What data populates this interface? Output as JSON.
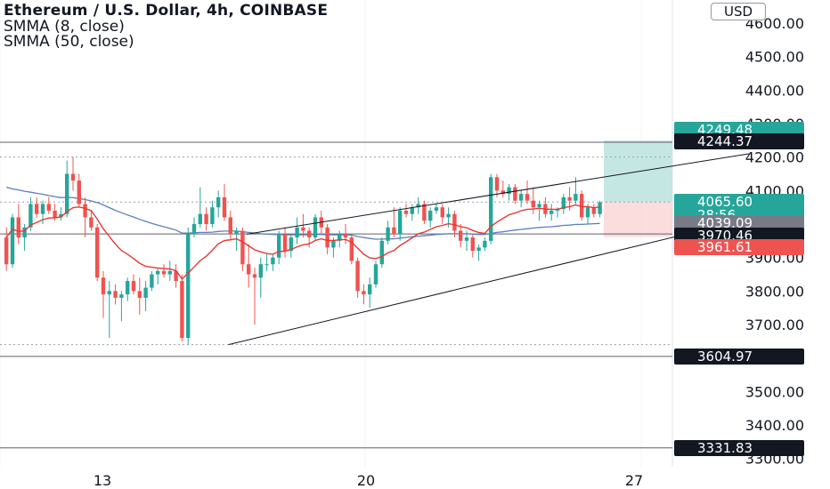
{
  "header": {
    "title": "Ethereum / U.S. Dollar, 4h, COINBASE",
    "indicator_1": "SMMA (8, close)",
    "indicator_2": "SMMA (50, close)",
    "currency_button": "USD"
  },
  "colors": {
    "up": "#26a69a",
    "down": "#ef5350",
    "smma8": "#e53935",
    "smma50": "#5b7fbf",
    "target_zone": "#b2dfdb",
    "stop_zone": "#fbd2d2"
  },
  "chart_data": {
    "type": "candlestick",
    "title": "Ethereum / U.S. Dollar, 4h, COINBASE",
    "ylim": [
      3260,
      4640
    ],
    "y_ticks": [
      "4600.00",
      "4500.00",
      "4400.00",
      "4300.00",
      "4200.00",
      "4100.00",
      "4000.00",
      "3900.00",
      "3800.00",
      "3700.00",
      "3600.00",
      "3500.00",
      "3400.00",
      "3300.00"
    ],
    "x_ticks": [
      "13",
      "20",
      "27"
    ],
    "candles": [
      [
        3960,
        3990,
        3860,
        3880
      ],
      [
        3880,
        4030,
        3870,
        4020
      ],
      [
        4020,
        4060,
        3940,
        3960
      ],
      [
        3960,
        4000,
        3920,
        3990
      ],
      [
        3990,
        4080,
        3980,
        4060
      ],
      [
        4060,
        4080,
        4020,
        4030
      ],
      [
        4030,
        4070,
        4000,
        4060
      ],
      [
        4060,
        4080,
        4030,
        4040
      ],
      [
        4040,
        4060,
        4010,
        4020
      ],
      [
        4020,
        4050,
        4010,
        4030
      ],
      [
        4030,
        4190,
        4020,
        4150
      ],
      [
        4150,
        4200,
        4100,
        4130
      ],
      [
        4130,
        4150,
        4050,
        4060
      ],
      [
        4060,
        4080,
        3960,
        4020
      ],
      [
        4020,
        4040,
        3980,
        3990
      ],
      [
        3990,
        4000,
        3830,
        3840
      ],
      [
        3840,
        3860,
        3720,
        3790
      ],
      [
        3790,
        3830,
        3660,
        3800
      ],
      [
        3800,
        3820,
        3760,
        3780
      ],
      [
        3780,
        3800,
        3710,
        3790
      ],
      [
        3790,
        3840,
        3770,
        3830
      ],
      [
        3830,
        3850,
        3790,
        3800
      ],
      [
        3800,
        3840,
        3730,
        3780
      ],
      [
        3780,
        3830,
        3740,
        3810
      ],
      [
        3810,
        3860,
        3800,
        3850
      ],
      [
        3850,
        3870,
        3820,
        3860
      ],
      [
        3860,
        3880,
        3840,
        3850
      ],
      [
        3850,
        3890,
        3830,
        3860
      ],
      [
        3860,
        3880,
        3810,
        3830
      ],
      [
        3830,
        3850,
        3650,
        3660
      ],
      [
        3660,
        3990,
        3640,
        3970
      ],
      [
        3970,
        4020,
        3960,
        4000
      ],
      [
        4000,
        4110,
        3990,
        4030
      ],
      [
        4030,
        4050,
        3980,
        4000
      ],
      [
        4000,
        4070,
        3990,
        4050
      ],
      [
        4050,
        4100,
        4020,
        4080
      ],
      [
        4080,
        4120,
        4010,
        4020
      ],
      [
        4020,
        4040,
        3950,
        3970
      ],
      [
        3970,
        3990,
        3920,
        3980
      ],
      [
        3980,
        3990,
        3860,
        3880
      ],
      [
        3880,
        3940,
        3810,
        3850
      ],
      [
        3850,
        3870,
        3700,
        3840
      ],
      [
        3840,
        3900,
        3780,
        3880
      ],
      [
        3880,
        3910,
        3860,
        3880
      ],
      [
        3880,
        3910,
        3860,
        3900
      ],
      [
        3900,
        3980,
        3880,
        3970
      ],
      [
        3970,
        3990,
        3900,
        3920
      ],
      [
        3920,
        3970,
        3900,
        3960
      ],
      [
        3960,
        4020,
        3940,
        3990
      ],
      [
        3990,
        4030,
        3960,
        3980
      ],
      [
        3980,
        3990,
        3930,
        3960
      ],
      [
        3960,
        4030,
        3950,
        4020
      ],
      [
        4020,
        4040,
        3970,
        3990
      ],
      [
        3990,
        4000,
        3910,
        3930
      ],
      [
        3930,
        3960,
        3900,
        3950
      ],
      [
        3950,
        3980,
        3930,
        3970
      ],
      [
        3970,
        4000,
        3940,
        3960
      ],
      [
        3960,
        3970,
        3880,
        3890
      ],
      [
        3890,
        3900,
        3780,
        3800
      ],
      [
        3800,
        3820,
        3760,
        3790
      ],
      [
        3790,
        3840,
        3750,
        3820
      ],
      [
        3820,
        3890,
        3810,
        3880
      ],
      [
        3880,
        3960,
        3870,
        3950
      ],
      [
        3950,
        4010,
        3940,
        3990
      ],
      [
        3990,
        4050,
        3960,
        3970
      ],
      [
        3970,
        4050,
        3950,
        4040
      ],
      [
        4040,
        4060,
        4020,
        4030
      ],
      [
        4030,
        4060,
        4010,
        4050
      ],
      [
        4050,
        4080,
        4030,
        4060
      ],
      [
        4060,
        4070,
        4000,
        4010
      ],
      [
        4010,
        4050,
        3990,
        4040
      ],
      [
        4040,
        4060,
        4030,
        4050
      ],
      [
        4050,
        4060,
        4000,
        4020
      ],
      [
        4020,
        4050,
        3990,
        4030
      ],
      [
        4030,
        4040,
        3960,
        3980
      ],
      [
        3980,
        4000,
        3930,
        3950
      ],
      [
        3950,
        3980,
        3920,
        3960
      ],
      [
        3960,
        3970,
        3900,
        3920
      ],
      [
        3920,
        3940,
        3890,
        3930
      ],
      [
        3930,
        3960,
        3920,
        3950
      ],
      [
        3950,
        4150,
        3940,
        4140
      ],
      [
        4140,
        4150,
        4080,
        4100
      ],
      [
        4100,
        4130,
        4080,
        4090
      ],
      [
        4090,
        4120,
        4070,
        4110
      ],
      [
        4110,
        4120,
        4060,
        4070
      ],
      [
        4070,
        4100,
        4050,
        4090
      ],
      [
        4090,
        4130,
        4060,
        4070
      ],
      [
        4070,
        4110,
        4030,
        4050
      ],
      [
        4050,
        4070,
        4010,
        4060
      ],
      [
        4060,
        4080,
        4020,
        4030
      ],
      [
        4030,
        4060,
        4010,
        4040
      ],
      [
        4040,
        4050,
        4020,
        4045
      ],
      [
        4045,
        4090,
        4030,
        4080
      ],
      [
        4080,
        4110,
        4040,
        4070
      ],
      [
        4070,
        4140,
        4060,
        4090
      ],
      [
        4090,
        4100,
        4010,
        4020
      ],
      [
        4020,
        4060,
        4000,
        4050
      ],
      [
        4050,
        4060,
        4020,
        4030
      ],
      [
        4030,
        4070,
        4020,
        4065
      ]
    ],
    "smma_8": [
      3960,
      3985,
      3978,
      3980,
      3997,
      4005,
      4013,
      4018,
      4019,
      4021,
      4037,
      4049,
      4051,
      4047,
      4040,
      4015,
      3986,
      3963,
      3940,
      3921,
      3910,
      3897,
      3883,
      3874,
      3871,
      3869,
      3867,
      3866,
      3861,
      3836,
      3853,
      3872,
      3891,
      3904,
      3922,
      3941,
      3951,
      3953,
      3956,
      3947,
      3935,
      3923,
      3917,
      3912,
      3910,
      3918,
      3919,
      3924,
      3932,
      3938,
      3941,
      3951,
      3956,
      3951,
      3951,
      3953,
      3954,
      3946,
      3928,
      3910,
      3899,
      3897,
      3903,
      3914,
      3921,
      3936,
      3947,
      3959,
      3971,
      3976,
      3984,
      3992,
      3996,
      4001,
      3998,
      3992,
      3989,
      3981,
      3975,
      3972,
      3993,
      4006,
      4017,
      4028,
      4033,
      4040,
      4044,
      4045,
      4047,
      4045,
      4044,
      4044,
      4049,
      4052,
      4057,
      4052,
      4052,
      4049,
      4051
    ],
    "smma_50": [
      4110,
      4105,
      4102,
      4098,
      4095,
      4092,
      4089,
      4085,
      4082,
      4079,
      4080,
      4079,
      4076,
      4073,
      4069,
      4064,
      4057,
      4049,
      4041,
      4034,
      4027,
      4021,
      4014,
      4008,
      4002,
      3997,
      3992,
      3987,
      3982,
      3973,
      3973,
      3974,
      3975,
      3975,
      3976,
      3978,
      3979,
      3979,
      3979,
      3977,
      3975,
      3973,
      3971,
      3970,
      3969,
      3969,
      3968,
      3968,
      3968,
      3968,
      3968,
      3969,
      3969,
      3968,
      3968,
      3968,
      3968,
      3967,
      3963,
      3960,
      3957,
      3955,
      3955,
      3956,
      3956,
      3958,
      3960,
      3962,
      3964,
      3965,
      3967,
      3969,
      3970,
      3971,
      3971,
      3971,
      3971,
      3970,
      3969,
      3969,
      3972,
      3975,
      3977,
      3980,
      3982,
      3984,
      3986,
      3988,
      3990,
      3991,
      3992,
      3994,
      3996,
      3997,
      3999,
      3999,
      4000,
      4001,
      4002
    ],
    "horizontal_lines": [
      4244.37,
      3970.46,
      3604.97,
      3331.83
    ],
    "dotted_lines": [
      4200,
      4065.6,
      3640
    ],
    "trend_channel": {
      "upper": [
        [
          40,
          3970
        ],
        [
          123,
          4210
        ]
      ],
      "lower": [
        [
          37,
          3640
        ],
        [
          132,
          4055
        ]
      ]
    },
    "position_box": {
      "entry": 4065.6,
      "target": 4249.48,
      "stop": 3961.61
    },
    "price_labels": [
      {
        "value": "4249.48",
        "color": "#26a69a"
      },
      {
        "value": "4244.37",
        "color": "#131722"
      },
      {
        "value": "4065.60",
        "sub": "28:56",
        "color": "#26a69a"
      },
      {
        "value": "4039.09",
        "color": "#787b86"
      },
      {
        "value": "3970.46",
        "color": "#131722"
      },
      {
        "value": "3961.61",
        "color": "#ef5350"
      },
      {
        "value": "3604.97",
        "color": "#131722"
      },
      {
        "value": "3331.83",
        "color": "#131722"
      }
    ]
  }
}
